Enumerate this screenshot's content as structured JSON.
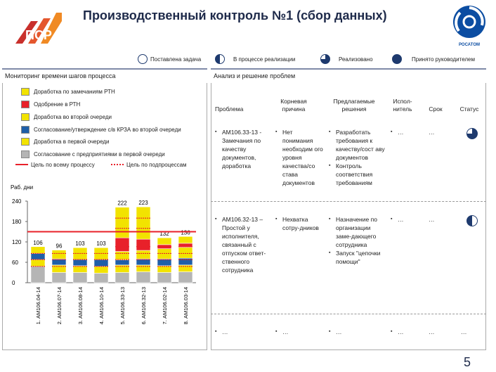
{
  "header": {
    "title": "Производственный контроль №1 (сбор данных)",
    "logo_left_text": "ПСР",
    "logo_right_text": "РОСАТОМ"
  },
  "status_legend": [
    {
      "label": "Поставлена задача",
      "fill": "none"
    },
    {
      "label": "В процессе реализации",
      "fill": "half"
    },
    {
      "label": "Реализовано",
      "fill": "three-quarter"
    },
    {
      "label": "Принято руководителем",
      "fill": "full"
    }
  ],
  "left": {
    "title": "Мониторинг времени шагов процесса",
    "legend": [
      {
        "label": "Доработка по замечаниям РТН",
        "color": "#f2e300"
      },
      {
        "label": "Одобрение в РТН",
        "color": "#e8212a"
      },
      {
        "label": "Доработка во второй очереди",
        "color": "#f2e300"
      },
      {
        "label": "Согласование/утверждение с/в КРЗА во второй очереди",
        "color": "#1f5fa8"
      },
      {
        "label": "Доработка в первой очереди",
        "color": "#f2e300"
      },
      {
        "label": "Согласование с предприятиями в первой очереди",
        "color": "#b5b5b5"
      }
    ],
    "line_legend": [
      {
        "label": "Цель по всему процессу",
        "color": "#e8212a",
        "style": "solid"
      },
      {
        "label": "Цель по подпроцессам",
        "color": "#e8212a",
        "style": "dotted"
      }
    ]
  },
  "chart_data": {
    "type": "bar",
    "ylabel": "Раб. дни",
    "ylim": [
      0,
      240
    ],
    "yticks": [
      0,
      60,
      120,
      180,
      240
    ],
    "categories": [
      "1. АМ106.04-14",
      "2. АМ106.07-14",
      "3. АМ106.08-14",
      "4. АМ106.10-14",
      "5. АМ106.33-13",
      "6. АМ106.32-13",
      "7. АМ106.02-14",
      "8. АМ106.03-14"
    ],
    "totals": [
      106,
      96,
      103,
      103,
      222,
      223,
      132,
      136
    ],
    "series": [
      {
        "name": "Согласование с предприятиями в первой очереди",
        "color": "#b5b5b5",
        "values": [
          48,
          30,
          30,
          28,
          30,
          32,
          30,
          32
        ]
      },
      {
        "name": "Доработка в первой очереди",
        "color": "#f2e300",
        "values": [
          20,
          22,
          20,
          20,
          22,
          20,
          20,
          20
        ]
      },
      {
        "name": "Согласование/утверждение с/в КРЗА во второй очереди",
        "color": "#1f5fa8",
        "values": [
          18,
          18,
          18,
          20,
          15,
          18,
          20,
          20
        ]
      },
      {
        "name": "Доработка во второй очереди",
        "color": "#f2e300",
        "values": [
          20,
          26,
          35,
          35,
          25,
          25,
          30,
          32
        ]
      },
      {
        "name": "Одобрение в РТН",
        "color": "#e8212a",
        "values": [
          0,
          0,
          0,
          0,
          40,
          33,
          12,
          12
        ]
      },
      {
        "name": "Доработка по замечаниям РТН",
        "color": "#f2e300",
        "values": [
          0,
          0,
          0,
          0,
          90,
          95,
          20,
          20
        ]
      }
    ],
    "target_overall": 150,
    "targets_sub": [
      48,
      68,
      86,
      106,
      160,
      190
    ]
  },
  "right": {
    "title": "Анализ и решение проблем",
    "headers": {
      "problem": "Проблема",
      "cause": "Корневая причина",
      "solution": "Предлагаемые решения",
      "executor": "Испол-нитель",
      "term": "Срок",
      "status": "Статус"
    },
    "rows": [
      {
        "problem": "АМ106.33-13 - Замечания по качеству документов, доработка",
        "cause": "Нет понимания необходим ого уровня качества/со става документов",
        "solutions": [
          "Разработать требования к качеству/сост аву документов",
          "Контроль соответствия требованиям"
        ],
        "executor": "…",
        "term": "…",
        "status": "three-quarter"
      },
      {
        "problem": "АМ106.32-13 – Простой у исполнителя, связанный с отпуском ответ-ственного сотрудника",
        "cause": "Нехватка сотру-дников",
        "solutions": [
          "Назначение по организации заме-дающего сотрудника",
          "Запуск \"цепочки помощи\""
        ],
        "executor": "…",
        "term": "…",
        "status": "half"
      },
      {
        "problem": "…",
        "cause": "…",
        "solutions": [
          "…"
        ],
        "executor": "…",
        "term": "…",
        "status": "…"
      }
    ]
  },
  "page_number": "5"
}
